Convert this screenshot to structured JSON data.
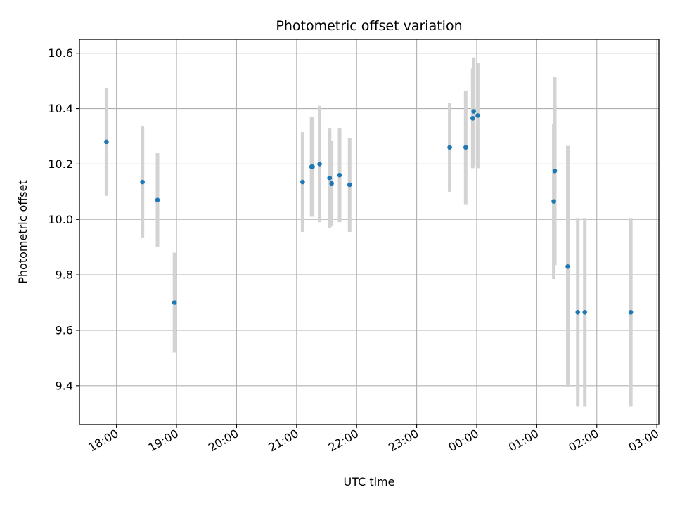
{
  "chart_data": {
    "type": "scatter",
    "title": "Photometric offset variation",
    "xlabel": "UTC time",
    "ylabel": "Photometric offset",
    "x_ticks": [
      "18:00",
      "19:00",
      "20:00",
      "21:00",
      "22:00",
      "23:00",
      "00:00",
      "01:00",
      "02:00",
      "03:00"
    ],
    "x_tick_times": [
      "2000-01-01T18:00",
      "2000-01-01T19:00",
      "2000-01-01T20:00",
      "2000-01-01T21:00",
      "2000-01-01T22:00",
      "2000-01-01T23:00",
      "2000-01-02T00:00",
      "2000-01-02T01:00",
      "2000-01-02T02:00",
      "2000-01-02T03:00"
    ],
    "xlim": [
      "2000-01-01T17:23",
      "2000-01-02T03:02"
    ],
    "y_ticks": [
      9.4,
      9.6,
      9.8,
      10.0,
      10.2,
      10.4,
      10.6
    ],
    "ylim": [
      9.26,
      10.65
    ],
    "grid": true,
    "marker_color": "#1f77b4",
    "errorbar_color": "#d3d3d3",
    "points": [
      {
        "x": "2000-01-01T17:50",
        "y": 10.28,
        "yerr": 0.195
      },
      {
        "x": "2000-01-01T18:26",
        "y": 10.135,
        "yerr": 0.2
      },
      {
        "x": "2000-01-01T18:41",
        "y": 10.07,
        "yerr": 0.17
      },
      {
        "x": "2000-01-01T18:58",
        "y": 9.7,
        "yerr": 0.18
      },
      {
        "x": "2000-01-01T21:06",
        "y": 10.135,
        "yerr": 0.18
      },
      {
        "x": "2000-01-01T21:15",
        "y": 10.19,
        "yerr": 0.18
      },
      {
        "x": "2000-01-01T21:16",
        "y": 10.19,
        "yerr": 0.18
      },
      {
        "x": "2000-01-01T21:23",
        "y": 10.2,
        "yerr": 0.21
      },
      {
        "x": "2000-01-01T21:33",
        "y": 10.15,
        "yerr": 0.18
      },
      {
        "x": "2000-01-01T21:35",
        "y": 10.13,
        "yerr": 0.155
      },
      {
        "x": "2000-01-01T21:43",
        "y": 10.16,
        "yerr": 0.17
      },
      {
        "x": "2000-01-01T21:53",
        "y": 10.125,
        "yerr": 0.17
      },
      {
        "x": "2000-01-01T23:33",
        "y": 10.26,
        "yerr": 0.16
      },
      {
        "x": "2000-01-01T23:49",
        "y": 10.26,
        "yerr": 0.205
      },
      {
        "x": "2000-01-01T23:56",
        "y": 10.365,
        "yerr": 0.18
      },
      {
        "x": "2000-01-01T23:57",
        "y": 10.39,
        "yerr": 0.195
      },
      {
        "x": "2000-01-02T00:01",
        "y": 10.375,
        "yerr": 0.19
      },
      {
        "x": "2000-01-02T01:17",
        "y": 10.065,
        "yerr": 0.28
      },
      {
        "x": "2000-01-02T01:18",
        "y": 10.175,
        "yerr": 0.34
      },
      {
        "x": "2000-01-02T01:31",
        "y": 9.83,
        "yerr": 0.435
      },
      {
        "x": "2000-01-02T01:41",
        "y": 9.665,
        "yerr": 0.34
      },
      {
        "x": "2000-01-02T01:48",
        "y": 9.665,
        "yerr": 0.34
      },
      {
        "x": "2000-01-02T02:34",
        "y": 9.665,
        "yerr": 0.34
      }
    ]
  }
}
